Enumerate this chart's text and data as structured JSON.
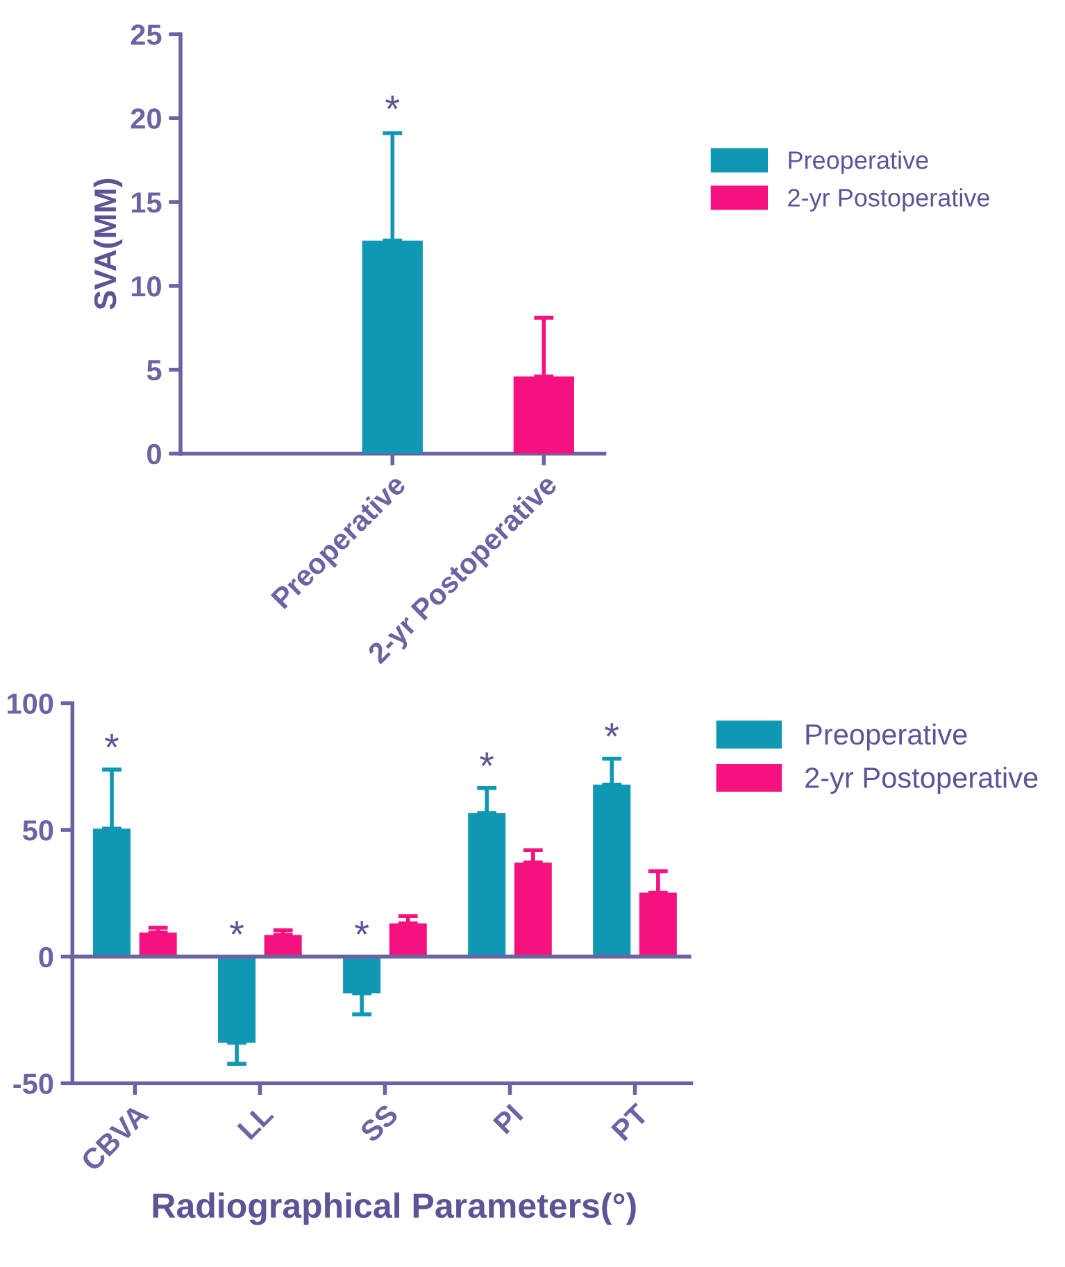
{
  "chart_data": [
    {
      "type": "bar",
      "ylabel": "SVA(MM)",
      "categories": [
        "Preoperative",
        "2-yr Postoperative"
      ],
      "series": [
        {
          "name": "Preoperative",
          "color": "#1097b3",
          "values": [
            12.7,
            null
          ],
          "errors": [
            [
              12.7,
              19.1
            ],
            null
          ]
        },
        {
          "name": "2-yr Postoperative",
          "color": "#f5127e",
          "values": [
            null,
            4.6
          ],
          "errors": [
            null,
            [
              4.6,
              8.1
            ]
          ]
        }
      ],
      "ylim": [
        0,
        25
      ],
      "yticks": [
        0,
        5,
        10,
        15,
        20,
        25
      ],
      "grid": false,
      "legend": "right",
      "annotations": [
        "*"
      ]
    },
    {
      "type": "bar",
      "xlabel": "Radiographical Parameters(°)",
      "categories": [
        "CBVA",
        "LL",
        "SS",
        "PI",
        "PT"
      ],
      "series": [
        {
          "name": "Preoperative",
          "color": "#1097b3",
          "values": [
            50.5,
            -34.0,
            -14.5,
            56.6,
            67.9
          ],
          "errors": [
            [
              50.5,
              73.8
            ],
            [
              -42.3,
              -34.0
            ],
            [
              -22.8,
              -14.5
            ],
            [
              56.6,
              66.5
            ],
            [
              67.9,
              78.1
            ]
          ]
        },
        {
          "name": "2-yr Postoperative",
          "color": "#f5127e",
          "values": [
            9.5,
            8.5,
            13.1,
            37.1,
            25.2
          ],
          "errors": [
            [
              9.5,
              11.4
            ],
            [
              8.5,
              10.4
            ],
            [
              13.1,
              16.0
            ],
            [
              37.1,
              42.0
            ],
            [
              25.2,
              33.7
            ]
          ]
        }
      ],
      "ylim": [
        -50,
        100
      ],
      "yticks": [
        -50,
        0,
        50,
        100
      ],
      "grid": false,
      "legend": "right",
      "ref_lines": [
        {
          "axis": "y",
          "value": 0
        }
      ],
      "annotations": [
        "*",
        "*",
        "*",
        "*",
        "*"
      ]
    }
  ]
}
